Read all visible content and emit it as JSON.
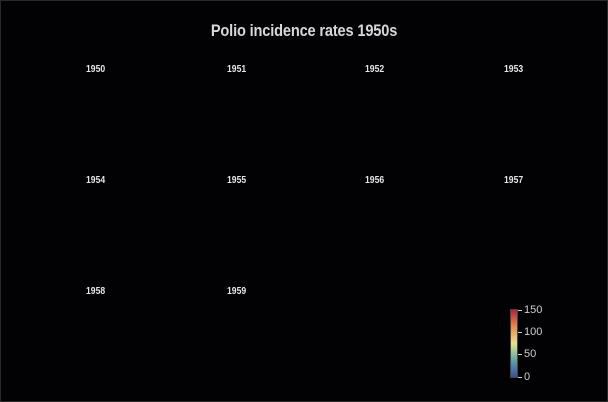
{
  "chart_data": {
    "type": "heatmap",
    "title": "Polio incidence rates 1950s",
    "facets": [
      "1950",
      "1951",
      "1952",
      "1953",
      "1954",
      "1955",
      "1956",
      "1957",
      "1958",
      "1959"
    ],
    "colorscale": {
      "range": [
        0,
        150
      ],
      "ticks": [
        "0",
        "50",
        "100",
        "150"
      ],
      "colors": [
        "#3b4d9c",
        "#5aa6a8",
        "#e9e08a",
        "#e98a4a",
        "#b2243e"
      ]
    }
  }
}
